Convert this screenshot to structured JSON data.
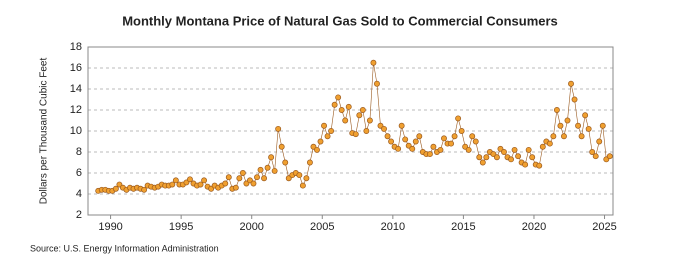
{
  "chart_data": {
    "type": "scatter_line",
    "title": "Monthly Montana Price of Natural Gas Sold to Commercial Consumers",
    "y_label": "Dollars per Thousand Cubic Feet",
    "source": "Source: U.S. Energy Information Administration",
    "xlim": [
      1988.4,
      2025.6
    ],
    "xticks": [
      1990,
      1995,
      2000,
      2005,
      2010,
      2015,
      2020,
      2025
    ],
    "ylim": [
      2,
      18
    ],
    "yticks": [
      2,
      4,
      6,
      8,
      10,
      12,
      14,
      16,
      18
    ],
    "grid": true,
    "x": [
      1989.125,
      1989.375,
      1989.625,
      1989.875,
      1990.125,
      1990.375,
      1990.625,
      1990.875,
      1991.125,
      1991.375,
      1991.625,
      1991.875,
      1992.125,
      1992.375,
      1992.625,
      1992.875,
      1993.125,
      1993.375,
      1993.625,
      1993.875,
      1994.125,
      1994.375,
      1994.625,
      1994.875,
      1995.125,
      1995.375,
      1995.625,
      1995.875,
      1996.125,
      1996.375,
      1996.625,
      1996.875,
      1997.125,
      1997.375,
      1997.625,
      1997.875,
      1998.125,
      1998.375,
      1998.625,
      1998.875,
      1999.125,
      1999.375,
      1999.625,
      1999.875,
      2000.125,
      2000.375,
      2000.625,
      2000.875,
      2001.125,
      2001.375,
      2001.625,
      2001.875,
      2002.125,
      2002.375,
      2002.625,
      2002.875,
      2003.125,
      2003.375,
      2003.625,
      2003.875,
      2004.125,
      2004.375,
      2004.625,
      2004.875,
      2005.125,
      2005.375,
      2005.625,
      2005.875,
      2006.125,
      2006.375,
      2006.625,
      2006.875,
      2007.125,
      2007.375,
      2007.625,
      2007.875,
      2008.125,
      2008.375,
      2008.625,
      2008.875,
      2009.125,
      2009.375,
      2009.625,
      2009.875,
      2010.125,
      2010.375,
      2010.625,
      2010.875,
      2011.125,
      2011.375,
      2011.625,
      2011.875,
      2012.125,
      2012.375,
      2012.625,
      2012.875,
      2013.125,
      2013.375,
      2013.625,
      2013.875,
      2014.125,
      2014.375,
      2014.625,
      2014.875,
      2015.125,
      2015.375,
      2015.625,
      2015.875,
      2016.125,
      2016.375,
      2016.625,
      2016.875,
      2017.125,
      2017.375,
      2017.625,
      2017.875,
      2018.125,
      2018.375,
      2018.625,
      2018.875,
      2019.125,
      2019.375,
      2019.625,
      2019.875,
      2020.125,
      2020.375,
      2020.625,
      2020.875,
      2021.125,
      2021.375,
      2021.625,
      2021.875,
      2022.125,
      2022.375,
      2022.625,
      2022.875,
      2023.125,
      2023.375,
      2023.625,
      2023.875,
      2024.125,
      2024.375,
      2024.625,
      2024.875,
      2025.125,
      2025.375
    ],
    "series": [
      {
        "name": "Montana",
        "color": "#f0a030",
        "edge": "#9a5a20",
        "values": [
          4.3,
          4.4,
          4.4,
          4.3,
          4.3,
          4.5,
          4.9,
          4.6,
          4.4,
          4.6,
          4.5,
          4.6,
          4.5,
          4.4,
          4.8,
          4.7,
          4.6,
          4.7,
          4.9,
          4.8,
          4.8,
          4.9,
          5.3,
          4.9,
          4.9,
          5.1,
          5.4,
          5.0,
          4.8,
          4.9,
          5.3,
          4.7,
          4.5,
          4.8,
          4.6,
          4.8,
          5.0,
          5.6,
          4.5,
          4.6,
          5.5,
          6.0,
          5.0,
          5.3,
          5.0,
          5.6,
          6.3,
          5.5,
          6.5,
          7.5,
          6.2,
          10.2,
          8.5,
          7.0,
          5.5,
          5.8,
          6.0,
          5.8,
          4.8,
          5.5,
          7.0,
          8.5,
          8.2,
          9.0,
          10.5,
          9.5,
          10.0,
          12.5,
          13.2,
          12.0,
          11.0,
          12.3,
          9.8,
          9.7,
          11.5,
          12.0,
          10.0,
          11.0,
          16.5,
          14.5,
          10.5,
          10.2,
          9.5,
          9.0,
          8.5,
          8.3,
          10.5,
          9.2,
          8.6,
          8.3,
          9.0,
          9.5,
          8.0,
          7.8,
          7.8,
          8.5,
          8.0,
          8.2,
          9.3,
          8.8,
          8.8,
          9.5,
          11.2,
          10.0,
          8.5,
          8.2,
          9.5,
          9.0,
          7.5,
          7.0,
          7.5,
          8.0,
          7.8,
          7.5,
          8.3,
          8.0,
          7.5,
          7.3,
          8.2,
          7.6,
          7.0,
          6.8,
          8.2,
          7.5,
          6.8,
          6.7,
          8.5,
          9.0,
          8.8,
          9.5,
          12.0,
          10.5,
          9.5,
          11.0,
          14.5,
          13.0,
          10.5,
          9.5,
          11.5,
          10.2,
          8.0,
          7.6,
          9.0,
          10.5,
          7.3,
          7.6
        ]
      }
    ]
  }
}
